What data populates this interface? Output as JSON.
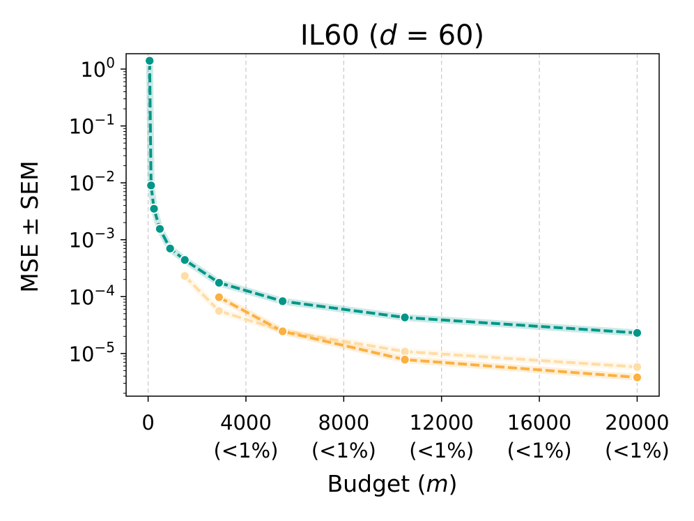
{
  "chart_data": {
    "type": "line",
    "title": "IL60 (",
    "title_var": "d",
    "title_rest": " = 60)",
    "xlabel": "Budget (",
    "xlabel_var": "m",
    "xlabel_end": ")",
    "ylabel": "MSE ± SEM",
    "xlim": [
      -900,
      20900
    ],
    "ylog_range": [
      -5.75,
      0.27
    ],
    "xscale": "linear",
    "yscale": "log",
    "grid": "x-only dashed",
    "x_ticks": [
      {
        "value": 0,
        "label": "0",
        "sublabel": ""
      },
      {
        "value": 4000,
        "label": "4000",
        "sublabel": "(<1%)"
      },
      {
        "value": 8000,
        "label": "8000",
        "sublabel": "(<1%)"
      },
      {
        "value": 12000,
        "label": "12000",
        "sublabel": "(<1%)"
      },
      {
        "value": 16000,
        "label": "16000",
        "sublabel": "(<1%)"
      },
      {
        "value": 20000,
        "label": "20000",
        "sublabel": "(<1%)"
      }
    ],
    "y_ticks": [
      {
        "exp": 0,
        "base": "10",
        "sup": "0"
      },
      {
        "exp": -1,
        "base": "10",
        "sup": "−1"
      },
      {
        "exp": -2,
        "base": "10",
        "sup": "−2"
      },
      {
        "exp": -3,
        "base": "10",
        "sup": "−3"
      },
      {
        "exp": -4,
        "base": "10",
        "sup": "−4"
      },
      {
        "exp": -5,
        "base": "10",
        "sup": "−5"
      }
    ],
    "series": [
      {
        "name": "teal",
        "color": "#009688",
        "points": [
          {
            "x": 60,
            "y": 1.4
          },
          {
            "x": 120,
            "y": 0.009
          },
          {
            "x": 240,
            "y": 0.0035
          },
          {
            "x": 480,
            "y": 0.00155
          },
          {
            "x": 900,
            "y": 0.0007
          },
          {
            "x": 1500,
            "y": 0.00044
          },
          {
            "x": 2900,
            "y": 0.000175
          },
          {
            "x": 5500,
            "y": 8.3e-05
          },
          {
            "x": 10500,
            "y": 4.3e-05
          },
          {
            "x": 20000,
            "y": 2.3e-05
          }
        ]
      },
      {
        "name": "light-orange",
        "color": "#FFDDA6",
        "points": [
          {
            "x": 1500,
            "y": 0.00023
          },
          {
            "x": 2900,
            "y": 5.6e-05
          },
          {
            "x": 5500,
            "y": 2.5e-05
          },
          {
            "x": 10500,
            "y": 1.08e-05
          },
          {
            "x": 20000,
            "y": 5.8e-06
          }
        ]
      },
      {
        "name": "orange",
        "color": "#FBB040",
        "points": [
          {
            "x": 2900,
            "y": 9.75e-05
          },
          {
            "x": 5500,
            "y": 2.45e-05
          },
          {
            "x": 10500,
            "y": 7.8e-06
          },
          {
            "x": 20000,
            "y": 3.8e-06
          }
        ]
      }
    ]
  }
}
